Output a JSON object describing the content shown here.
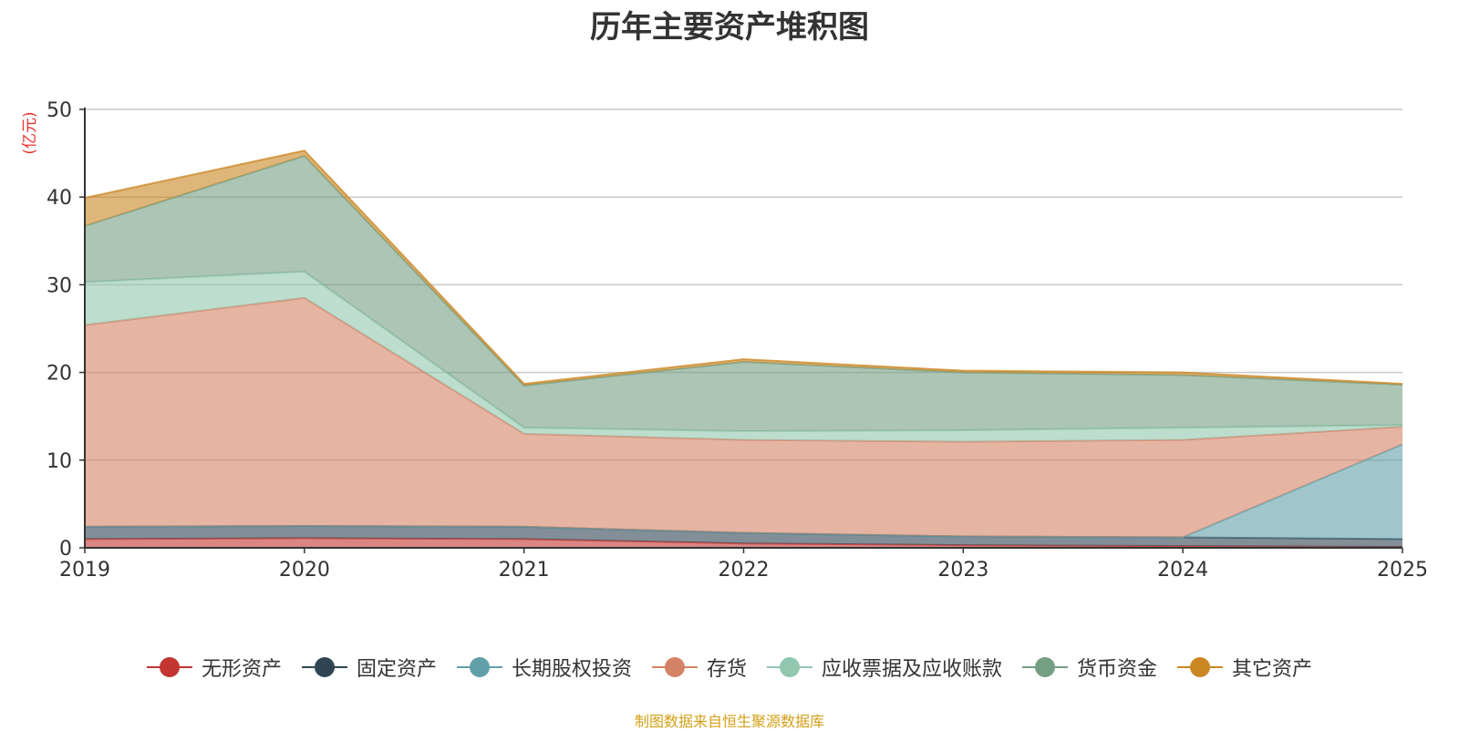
{
  "chart_data": {
    "type": "area",
    "stacked": true,
    "title": "历年主要资产堆积图",
    "ylabel": "(亿元)",
    "xlabel": "",
    "ylim": [
      0,
      50
    ],
    "yticks": [
      0,
      10,
      20,
      30,
      40,
      50
    ],
    "categories": [
      "2019",
      "2020",
      "2021",
      "2022",
      "2023",
      "2024",
      "2025"
    ],
    "grid": true,
    "legend_position": "bottom",
    "series": [
      {
        "name": "无形资产",
        "color": "#c23531",
        "values": [
          1.0,
          1.1,
          1.0,
          0.5,
          0.3,
          0.2,
          0.1
        ]
      },
      {
        "name": "固定资产",
        "color": "#2f4554",
        "values": [
          1.4,
          1.4,
          1.4,
          1.2,
          1.0,
          1.0,
          0.9
        ]
      },
      {
        "name": "长期股权投资",
        "color": "#61a0a8",
        "values": [
          0.0,
          0.0,
          0.0,
          0.0,
          0.0,
          0.0,
          10.8
        ]
      },
      {
        "name": "存货",
        "color": "#d48265",
        "values": [
          23.0,
          26.0,
          10.6,
          10.6,
          10.8,
          11.1,
          2.0
        ]
      },
      {
        "name": "应收票据及应收账款",
        "color": "#91c7ae",
        "values": [
          4.9,
          3.0,
          0.7,
          1.0,
          1.3,
          1.4,
          0.2
        ]
      },
      {
        "name": "货币资金",
        "color": "#749f83",
        "values": [
          6.4,
          13.2,
          4.8,
          7.9,
          6.6,
          6.0,
          4.6
        ]
      },
      {
        "name": "其它资产",
        "color": "#ca8622",
        "values": [
          3.2,
          0.6,
          0.2,
          0.3,
          0.2,
          0.3,
          0.1
        ]
      }
    ]
  },
  "source_note": "制图数据来自恒生聚源数据库"
}
